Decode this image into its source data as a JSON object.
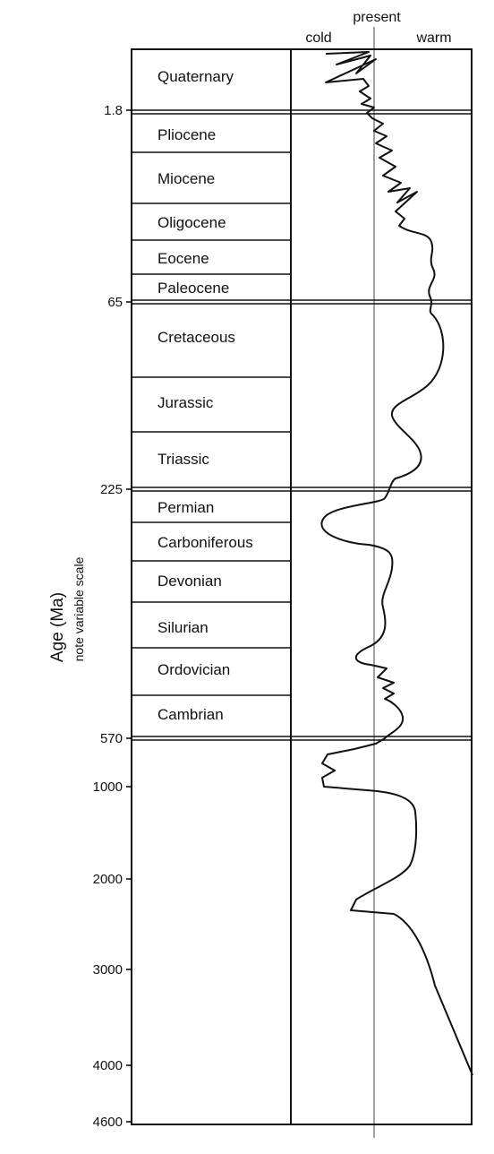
{
  "header": {
    "present_label": "present",
    "cold_label": "cold",
    "warm_label": "warm"
  },
  "y_axis": {
    "label": "Age (Ma)",
    "sublabel": "note variable scale",
    "ticks": [
      "1.8",
      "65",
      "225",
      "570",
      "1000",
      "2000",
      "3000",
      "4000",
      "4600"
    ]
  },
  "periods": [
    "Quaternary",
    "Pliocene",
    "Miocene",
    "Oligocene",
    "Eocene",
    "Paleocene",
    "Cretaceous",
    "Jurassic",
    "Triassic",
    "Permian",
    "Carboniferous",
    "Devonian",
    "Silurian",
    "Ordovician",
    "Cambrian"
  ],
  "chart_data": {
    "type": "line",
    "title": "",
    "xlabel": "",
    "ylabel": "Age (Ma)",
    "x_categories": [
      "cold",
      "present",
      "warm"
    ],
    "y_ticks": [
      1.8,
      65,
      225,
      570,
      1000,
      2000,
      3000,
      4000,
      4600
    ],
    "series": [
      {
        "temperature": [
          0,
          -0.3,
          0.1,
          -0.5,
          0.2,
          -0.2,
          0.1,
          0,
          0,
          0.1,
          0.25,
          0.3,
          0.5,
          0.5,
          0.4,
          0.7,
          0.4,
          0.1,
          0.45,
          0.05,
          -0.55,
          -0.1,
          0.2,
          -0.15,
          0.1,
          0.05,
          0.2,
          0.15,
          0.3,
          -0.5,
          -0.55,
          0.45,
          0.55,
          0.4,
          0.05,
          -0.25,
          0.1,
          0.8,
          1.0
        ],
        "age_ma": [
          0,
          0.3,
          0.6,
          0.9,
          1.2,
          1.5,
          1.8,
          3,
          5,
          10,
          20,
          30,
          40,
          50,
          60,
          70,
          100,
          150,
          200,
          225,
          270,
          320,
          380,
          430,
          470,
          490,
          520,
          545,
          560,
          650,
          800,
          1100,
          1500,
          1800,
          2000,
          2300,
          2500,
          3000,
          4500
        ]
      }
    ]
  }
}
